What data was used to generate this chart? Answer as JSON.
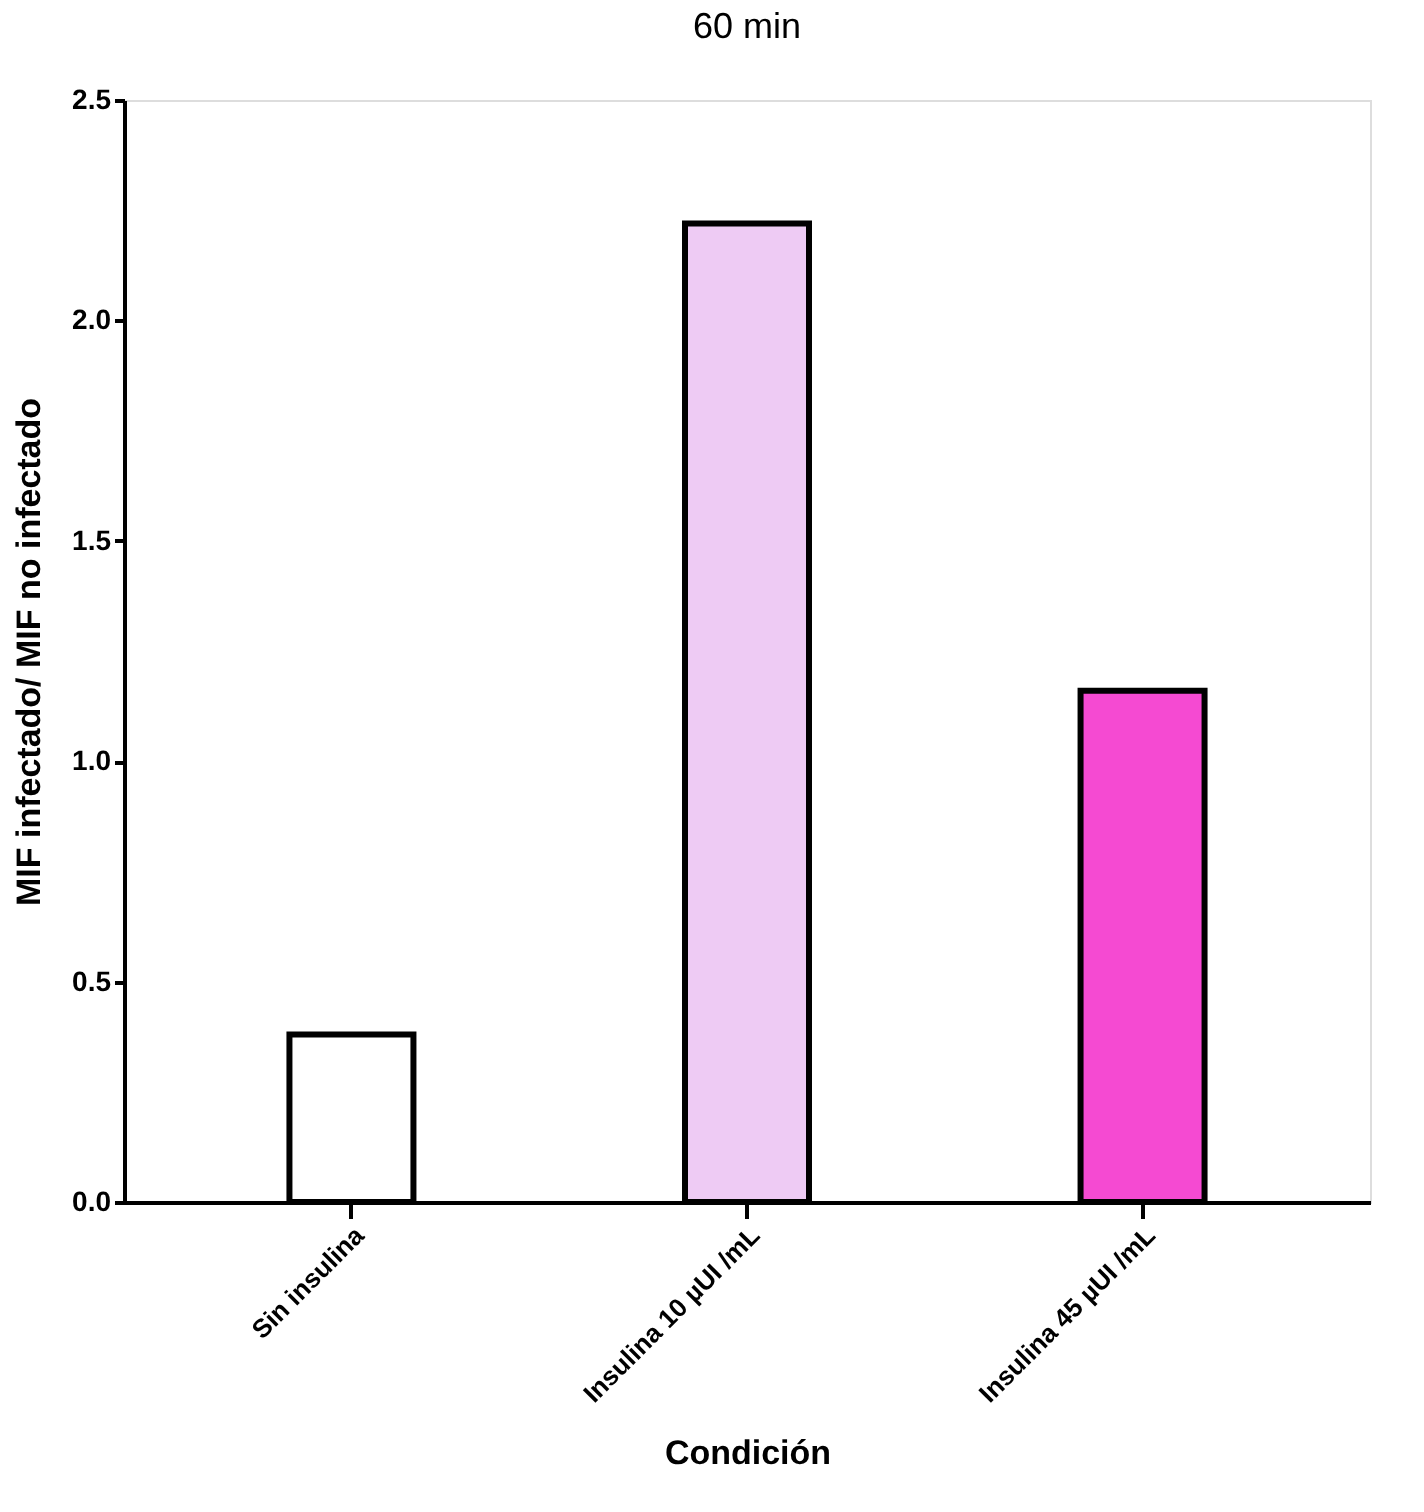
{
  "chart_data": {
    "type": "bar",
    "title": "60 min",
    "xlabel": "Condición",
    "ylabel": "MIF infectado/ MIF no infectado",
    "categories": [
      "Sin insulina",
      "Insulina 10 µUI /mL",
      "Insulina 45 µUI /mL"
    ],
    "values": [
      0.38,
      2.22,
      1.16
    ],
    "colors": [
      "#ffffff",
      "#eecbf4",
      "#f54ad2"
    ],
    "ylim": [
      0,
      2.5
    ],
    "yticks": [
      {
        "value": 0,
        "label": "0.0"
      },
      0.5,
      {
        "value": 1,
        "label": "1.0"
      },
      1.5,
      {
        "value": 2,
        "label": "2.0"
      },
      2.5
    ],
    "grid": false
  }
}
